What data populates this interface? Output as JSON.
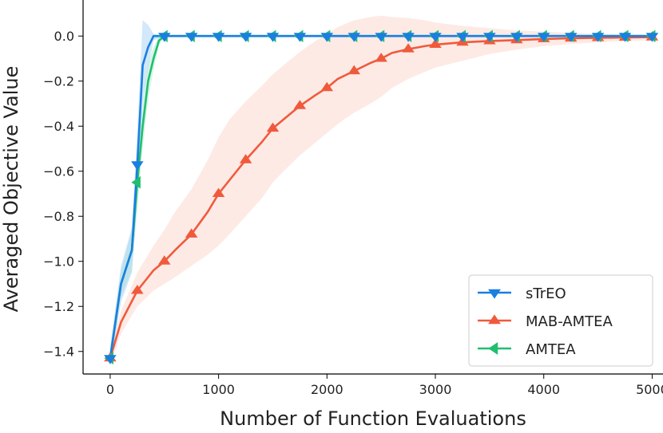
{
  "chart_data": {
    "type": "line",
    "title": "",
    "xlabel": "Number of Function Evaluations",
    "ylabel": "Averaged Objective Value",
    "xlim": [
      -250,
      5100
    ],
    "ylim": [
      -1.5,
      0.16
    ],
    "xticks": [
      0,
      1000,
      2000,
      3000,
      4000,
      5000
    ],
    "xtick_labels": [
      "0",
      "1000",
      "2000",
      "3000",
      "4000",
      "5000"
    ],
    "yticks": [
      0.0,
      -0.2,
      -0.4,
      -0.6,
      -0.8,
      -1.0,
      -1.2,
      -1.4
    ],
    "ytick_labels": [
      "0.0",
      "−0.2",
      "−0.4",
      "−0.6",
      "−0.8",
      "−1.0",
      "−1.2",
      "−1.4"
    ],
    "grid": false,
    "legend_position": "lower-right",
    "series": [
      {
        "name": "sTrEO",
        "color": "#1a7fe0",
        "band_color": "#9ecbf3",
        "marker": "triangle-down",
        "x": [
          0,
          100,
          200,
          250,
          300,
          350,
          400,
          500,
          750,
          1000,
          1250,
          1500,
          1750,
          2000,
          2250,
          2500,
          2750,
          3000,
          3250,
          3500,
          3750,
          4000,
          4250,
          4500,
          4750,
          5000
        ],
        "y": [
          -1.43,
          -1.1,
          -0.95,
          -0.57,
          -0.13,
          -0.05,
          0.0,
          0.0,
          0.0,
          0.0,
          0.0,
          0.0,
          0.0,
          0.0,
          0.0,
          0.0,
          0.0,
          0.0,
          0.0,
          0.0,
          0.0,
          0.0,
          0.0,
          0.0,
          0.0,
          0.0
        ],
        "band_upper": [
          -1.38,
          -1.02,
          -0.85,
          -0.42,
          0.07,
          0.05,
          0.01,
          0.0,
          0.0,
          0.0,
          0.0,
          0.0,
          0.0,
          0.0,
          0.0,
          0.0,
          0.0,
          0.0,
          0.0,
          0.0,
          0.0,
          0.0,
          0.0,
          0.0,
          0.0,
          0.0
        ],
        "band_lower": [
          -1.47,
          -1.18,
          -1.05,
          -0.72,
          -0.3,
          -0.14,
          -0.02,
          0.0,
          0.0,
          0.0,
          0.0,
          0.0,
          0.0,
          0.0,
          0.0,
          0.0,
          0.0,
          0.0,
          0.0,
          0.0,
          0.0,
          0.0,
          0.0,
          0.0,
          0.0,
          0.0
        ],
        "marker_x": [
          0,
          250,
          500,
          750,
          1000,
          1250,
          1500,
          1750,
          2000,
          2250,
          2500,
          2750,
          3000,
          3250,
          3500,
          3750,
          4000,
          4250,
          4500,
          4750,
          5000
        ]
      },
      {
        "name": "MAB-AMTEA",
        "color": "#f05a3c",
        "band_color": "#fbd0c6",
        "marker": "triangle-up",
        "x": [
          0,
          100,
          250,
          400,
          500,
          600,
          750,
          900,
          1000,
          1100,
          1250,
          1400,
          1500,
          1600,
          1750,
          1900,
          2000,
          2100,
          2250,
          2400,
          2500,
          2600,
          2750,
          2900,
          3000,
          3250,
          3500,
          3750,
          4000,
          4250,
          4500,
          4750,
          5000
        ],
        "y": [
          -1.43,
          -1.27,
          -1.13,
          -1.04,
          -1.0,
          -0.95,
          -0.88,
          -0.78,
          -0.7,
          -0.64,
          -0.55,
          -0.47,
          -0.41,
          -0.37,
          -0.31,
          -0.26,
          -0.23,
          -0.19,
          -0.155,
          -0.12,
          -0.1,
          -0.075,
          -0.058,
          -0.045,
          -0.038,
          -0.028,
          -0.022,
          -0.018,
          -0.013,
          -0.01,
          -0.008,
          -0.006,
          -0.005
        ],
        "band_upper": [
          -1.4,
          -1.22,
          -1.05,
          -0.93,
          -0.86,
          -0.78,
          -0.68,
          -0.55,
          -0.45,
          -0.37,
          -0.29,
          -0.22,
          -0.17,
          -0.13,
          -0.07,
          -0.02,
          0.01,
          0.04,
          0.07,
          0.085,
          0.09,
          0.085,
          0.08,
          0.07,
          0.06,
          0.045,
          0.035,
          0.025,
          0.02,
          0.015,
          0.01,
          0.008,
          0.006
        ],
        "band_lower": [
          -1.46,
          -1.32,
          -1.2,
          -1.13,
          -1.1,
          -1.07,
          -1.02,
          -0.97,
          -0.93,
          -0.88,
          -0.8,
          -0.72,
          -0.65,
          -0.6,
          -0.53,
          -0.47,
          -0.43,
          -0.39,
          -0.34,
          -0.3,
          -0.27,
          -0.23,
          -0.19,
          -0.16,
          -0.14,
          -0.11,
          -0.08,
          -0.06,
          -0.045,
          -0.035,
          -0.028,
          -0.022,
          -0.02
        ],
        "marker_x": [
          0,
          250,
          500,
          750,
          1000,
          1250,
          1500,
          1750,
          2000,
          2250,
          2500,
          2750,
          3000,
          3250,
          3500,
          3750,
          4000,
          4250,
          4500,
          4750,
          5000
        ]
      },
      {
        "name": "AMTEA",
        "color": "#1fbf6e",
        "band_color": "#a8e7c6",
        "marker": "triangle-left",
        "x": [
          0,
          100,
          200,
          250,
          300,
          350,
          400,
          450,
          500,
          750,
          1000,
          1250,
          1500,
          1750,
          2000,
          2250,
          2500,
          2750,
          3000,
          3250,
          3500,
          3750,
          4000,
          4250,
          4500,
          4750,
          5000
        ],
        "y": [
          -1.43,
          -1.1,
          -0.95,
          -0.65,
          -0.4,
          -0.2,
          -0.1,
          -0.02,
          0.0,
          0.0,
          0.0,
          0.0,
          0.0,
          0.0,
          0.0,
          0.0,
          0.0,
          0.0,
          0.0,
          0.0,
          0.0,
          0.0,
          0.0,
          0.0,
          0.0,
          0.0,
          0.0
        ],
        "band_upper": [
          -1.4,
          -1.04,
          -0.86,
          -0.53,
          -0.3,
          -0.12,
          -0.05,
          0.0,
          0.0,
          0.0,
          0.0,
          0.0,
          0.0,
          0.0,
          0.0,
          0.0,
          0.0,
          0.0,
          0.0,
          0.0,
          0.0,
          0.0,
          0.0,
          0.0,
          0.0,
          0.0,
          0.0
        ],
        "band_lower": [
          -1.46,
          -1.16,
          -1.04,
          -0.77,
          -0.5,
          -0.28,
          -0.15,
          -0.04,
          0.0,
          0.0,
          0.0,
          0.0,
          0.0,
          0.0,
          0.0,
          0.0,
          0.0,
          0.0,
          0.0,
          0.0,
          0.0,
          0.0,
          0.0,
          0.0,
          0.0,
          0.0,
          0.0
        ],
        "marker_x": [
          0,
          250,
          500,
          750,
          1000,
          1250,
          1500,
          1750,
          2000,
          2250,
          2500,
          2750,
          3000,
          3250,
          3500,
          3750,
          4000,
          4250,
          4500,
          4750,
          5000
        ]
      }
    ]
  }
}
